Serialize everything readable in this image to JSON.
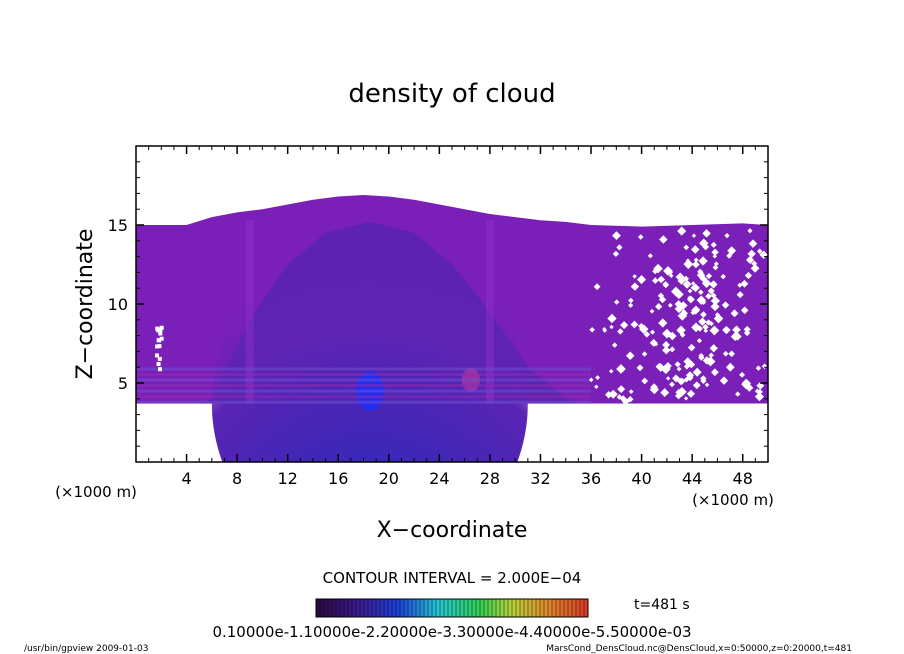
{
  "chart_data": {
    "type": "heatmap",
    "title": "density of cloud",
    "xlabel": "X−coordinate",
    "ylabel": "Z−coordinate",
    "x_unit": "(×1000 m)",
    "y_unit": "(×1000 m)",
    "xlim": [
      0,
      50
    ],
    "ylim": [
      0,
      20
    ],
    "x_ticks": [
      4,
      8,
      12,
      16,
      20,
      24,
      28,
      32,
      36,
      40,
      44,
      48
    ],
    "y_ticks": [
      5,
      10,
      15
    ],
    "contour_interval": "CONTOUR INTERVAL = 2.000E−04",
    "time_label": "t=481 s",
    "colorbar": {
      "colors": [
        "#2a0a3e",
        "#3b1a8c",
        "#1f3fd8",
        "#2f88ee",
        "#25c6d2",
        "#2fcf55",
        "#8ad63a",
        "#d2c83a",
        "#e08a2a",
        "#d83a2a"
      ],
      "tick_labels_overlapped": "0.10000e-1.10000e-2.20000e-3.30000e-4.40000e-5.50000e-03"
    },
    "cloud_profile": {
      "x": [
        0,
        4,
        6,
        8,
        10,
        12,
        14,
        16,
        18,
        20,
        22,
        24,
        26,
        28,
        30,
        32,
        34,
        36,
        40,
        44,
        48,
        50
      ],
      "top": [
        15.0,
        15.0,
        15.5,
        15.8,
        16.0,
        16.3,
        16.6,
        16.8,
        16.9,
        16.8,
        16.6,
        16.3,
        16.0,
        15.7,
        15.5,
        15.3,
        15.2,
        15.0,
        14.9,
        15.0,
        15.1,
        15.0
      ],
      "base": 3.7
    },
    "density_maximum": {
      "x": 18.5,
      "z": 4.5
    }
  },
  "footer": {
    "program": "/usr/bin/gpview   2009-01-03",
    "source": "MarsCond_DensCloud.nc@DensCloud,x=0:50000,z=0:20000,t=481"
  }
}
